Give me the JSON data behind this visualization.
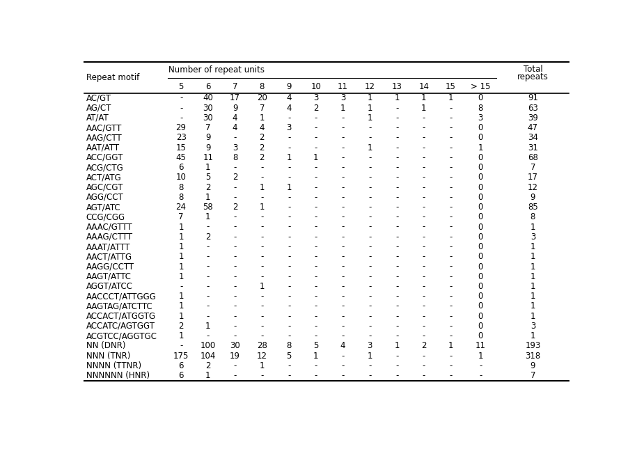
{
  "rows": [
    [
      "AC/GT",
      "-",
      "40",
      "17",
      "20",
      "4",
      "3",
      "3",
      "1",
      "1",
      "1",
      "1",
      "0",
      "91"
    ],
    [
      "AG/CT",
      "-",
      "30",
      "9",
      "7",
      "4",
      "2",
      "1",
      "1",
      "-",
      "1",
      "-",
      "8",
      "63"
    ],
    [
      "AT/AT",
      "-",
      "30",
      "4",
      "1",
      "-",
      "-",
      "-",
      "1",
      "-",
      "-",
      "-",
      "3",
      "39"
    ],
    [
      "AAC/GTT",
      "29",
      "7",
      "4",
      "4",
      "3",
      "-",
      "-",
      "-",
      "-",
      "-",
      "-",
      "0",
      "47"
    ],
    [
      "AAG/CTT",
      "23",
      "9",
      "-",
      "2",
      "-",
      "-",
      "-",
      "-",
      "-",
      "-",
      "-",
      "0",
      "34"
    ],
    [
      "AAT/ATT",
      "15",
      "9",
      "3",
      "2",
      "-",
      "-",
      "-",
      "1",
      "-",
      "-",
      "-",
      "1",
      "31"
    ],
    [
      "ACC/GGT",
      "45",
      "11",
      "8",
      "2",
      "1",
      "1",
      "-",
      "-",
      "-",
      "-",
      "-",
      "0",
      "68"
    ],
    [
      "ACG/CTG",
      "6",
      "1",
      "-",
      "-",
      "-",
      "-",
      "-",
      "-",
      "-",
      "-",
      "-",
      "0",
      "7"
    ],
    [
      "ACT/ATG",
      "10",
      "5",
      "2",
      "-",
      "-",
      "-",
      "-",
      "-",
      "-",
      "-",
      "-",
      "0",
      "17"
    ],
    [
      "AGC/CGT",
      "8",
      "2",
      "-",
      "1",
      "1",
      "-",
      "-",
      "-",
      "-",
      "-",
      "-",
      "0",
      "12"
    ],
    [
      "AGG/CCT",
      "8",
      "1",
      "-",
      "-",
      "-",
      "-",
      "-",
      "-",
      "-",
      "-",
      "-",
      "0",
      "9"
    ],
    [
      "AGT/ATC",
      "24",
      "58",
      "2",
      "1",
      "-",
      "-",
      "-",
      "-",
      "-",
      "-",
      "-",
      "0",
      "85"
    ],
    [
      "CCG/CGG",
      "7",
      "1",
      "-",
      "-",
      "-",
      "-",
      "-",
      "-",
      "-",
      "-",
      "-",
      "0",
      "8"
    ],
    [
      "AAAC/GTTT",
      "1",
      "-",
      "-",
      "-",
      "-",
      "-",
      "-",
      "-",
      "-",
      "-",
      "-",
      "0",
      "1"
    ],
    [
      "AAAG/CTTT",
      "1",
      "2",
      "-",
      "-",
      "-",
      "-",
      "-",
      "-",
      "-",
      "-",
      "-",
      "0",
      "3"
    ],
    [
      "AAAT/ATTT",
      "1",
      "-",
      "-",
      "-",
      "-",
      "-",
      "-",
      "-",
      "-",
      "-",
      "-",
      "0",
      "1"
    ],
    [
      "AACT/ATTG",
      "1",
      "-",
      "-",
      "-",
      "-",
      "-",
      "-",
      "-",
      "-",
      "-",
      "-",
      "0",
      "1"
    ],
    [
      "AAGG/CCTT",
      "1",
      "-",
      "-",
      "-",
      "-",
      "-",
      "-",
      "-",
      "-",
      "-",
      "-",
      "0",
      "1"
    ],
    [
      "AAGT/ATTC",
      "1",
      "-",
      "-",
      "-",
      "-",
      "-",
      "-",
      "-",
      "-",
      "-",
      "-",
      "0",
      "1"
    ],
    [
      "AGGT/ATCC",
      "-",
      "-",
      "-",
      "1",
      "-",
      "-",
      "-",
      "-",
      "-",
      "-",
      "-",
      "0",
      "1"
    ],
    [
      "AACCCT/ATTGGG",
      "1",
      "-",
      "-",
      "-",
      "-",
      "-",
      "-",
      "-",
      "-",
      "-",
      "-",
      "0",
      "1"
    ],
    [
      "AAGTAG/ATCTTC",
      "1",
      "-",
      "-",
      "-",
      "-",
      "-",
      "-",
      "-",
      "-",
      "-",
      "-",
      "0",
      "1"
    ],
    [
      "ACCACT/ATGGTG",
      "1",
      "-",
      "-",
      "-",
      "-",
      "-",
      "-",
      "-",
      "-",
      "-",
      "-",
      "0",
      "1"
    ],
    [
      "ACCATC/AGTGGT",
      "2",
      "1",
      "-",
      "-",
      "-",
      "-",
      "-",
      "-",
      "-",
      "-",
      "-",
      "0",
      "3"
    ],
    [
      "ACGTCC/AGGTGC",
      "1",
      "-",
      "-",
      "-",
      "-",
      "-",
      "-",
      "-",
      "-",
      "-",
      "-",
      "0",
      "1"
    ],
    [
      "NN (DNR)",
      "-",
      "100",
      "30",
      "28",
      "8",
      "5",
      "4",
      "3",
      "1",
      "2",
      "1",
      "11",
      "193"
    ],
    [
      "NNN (TNR)",
      "175",
      "104",
      "19",
      "12",
      "5",
      "1",
      "-",
      "1",
      "-",
      "-",
      "-",
      "1",
      "318"
    ],
    [
      "NNNN (TTNR)",
      "6",
      "2",
      "-",
      "1",
      "-",
      "-",
      "-",
      "-",
      "-",
      "-",
      "-",
      "-",
      "9"
    ],
    [
      "NNNNNN (HNR)",
      "6",
      "1",
      "-",
      "-",
      "-",
      "-",
      "-",
      "-",
      "-",
      "-",
      "-",
      "-",
      "7"
    ]
  ],
  "col_labels": [
    "5",
    "6",
    "7",
    "8",
    "9",
    "10",
    "11",
    "12",
    "13",
    "14",
    "15",
    "> 15",
    "repeats"
  ],
  "bg_color": "white",
  "line_color": "black",
  "font_size": 8.5,
  "header_font_size": 8.5
}
